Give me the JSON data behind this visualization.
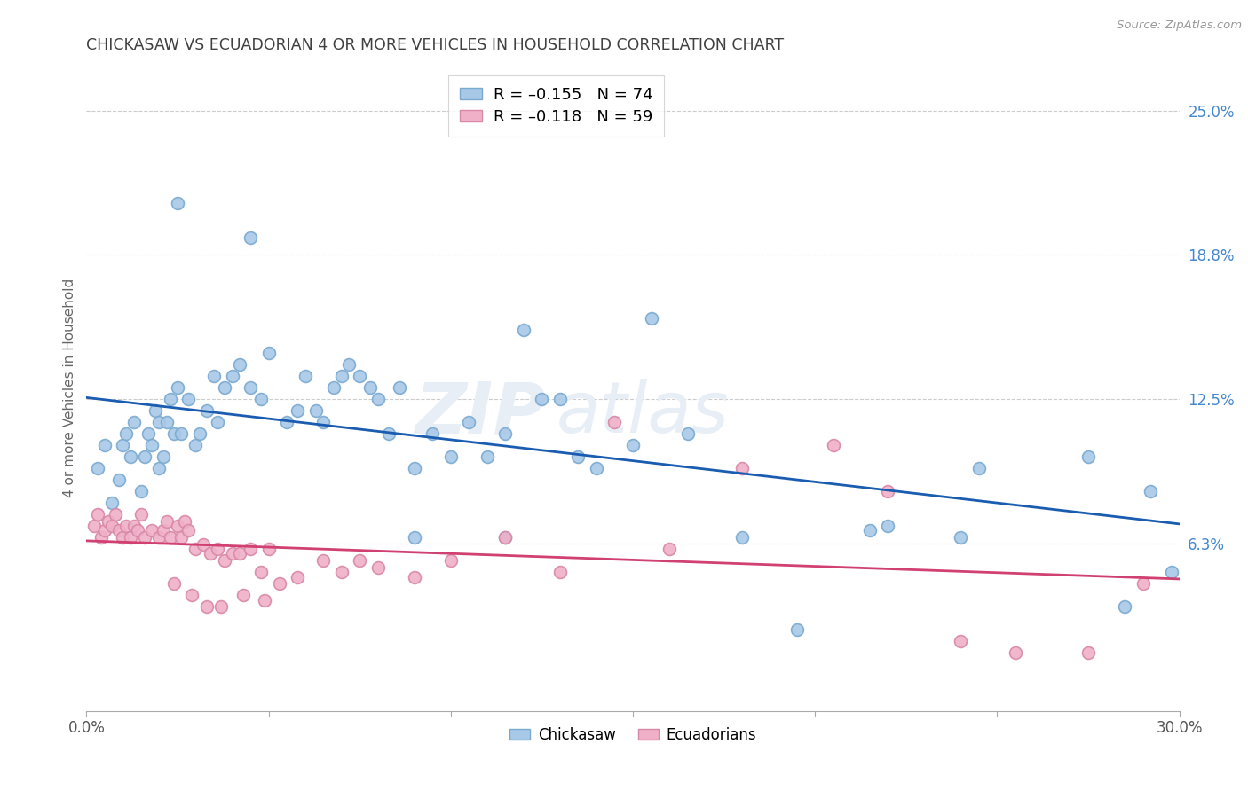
{
  "title": "CHICKASAW VS ECUADORIAN 4 OR MORE VEHICLES IN HOUSEHOLD CORRELATION CHART",
  "source": "Source: ZipAtlas.com",
  "ylabel": "4 or more Vehicles in Household",
  "watermark": "ZIPatlas",
  "xlim": [
    0.0,
    30.0
  ],
  "ylim": [
    -1.0,
    27.0
  ],
  "yticks": [
    6.25,
    12.5,
    18.75,
    25.0
  ],
  "ytick_labels": [
    "6.3%",
    "12.5%",
    "18.8%",
    "25.0%"
  ],
  "chickasaw_color": "#a8c8e8",
  "chickasaw_edge_color": "#7aaad0",
  "chickasaw_line_color": "#1a5cb0",
  "ecuadorian_color": "#f0b0c8",
  "ecuadorian_edge_color": "#d888a8",
  "ecuadorian_line_color": "#d04070",
  "background_color": "#ffffff",
  "grid_color": "#cccccc",
  "title_color": "#404040",
  "right_tick_color": "#4488cc",
  "chickasaw_x": [
    0.3,
    0.5,
    0.7,
    0.9,
    1.0,
    1.1,
    1.2,
    1.3,
    1.5,
    1.6,
    1.7,
    1.8,
    1.9,
    2.0,
    2.0,
    2.1,
    2.2,
    2.3,
    2.4,
    2.5,
    2.6,
    2.8,
    3.0,
    3.1,
    3.3,
    3.5,
    3.6,
    3.8,
    4.0,
    4.2,
    4.5,
    4.8,
    5.0,
    5.5,
    5.8,
    6.0,
    6.3,
    6.5,
    6.8,
    7.0,
    7.2,
    7.5,
    7.8,
    8.0,
    8.3,
    8.6,
    9.0,
    9.5,
    10.0,
    10.5,
    11.0,
    11.5,
    12.0,
    12.5,
    13.5,
    14.0,
    15.0,
    16.5,
    18.0,
    19.5,
    22.0,
    24.5,
    27.5,
    28.5,
    29.2,
    29.8,
    2.5,
    4.5,
    13.0,
    15.5,
    21.5,
    24.0,
    9.0,
    11.5
  ],
  "chickasaw_y": [
    9.5,
    10.5,
    8.0,
    9.0,
    10.5,
    11.0,
    10.0,
    11.5,
    8.5,
    10.0,
    11.0,
    10.5,
    12.0,
    9.5,
    11.5,
    10.0,
    11.5,
    12.5,
    11.0,
    13.0,
    11.0,
    12.5,
    10.5,
    11.0,
    12.0,
    13.5,
    11.5,
    13.0,
    13.5,
    14.0,
    13.0,
    12.5,
    14.5,
    11.5,
    12.0,
    13.5,
    12.0,
    11.5,
    13.0,
    13.5,
    14.0,
    13.5,
    13.0,
    12.5,
    11.0,
    13.0,
    9.5,
    11.0,
    10.0,
    11.5,
    10.0,
    11.0,
    15.5,
    12.5,
    10.0,
    9.5,
    10.5,
    11.0,
    6.5,
    2.5,
    7.0,
    9.5,
    10.0,
    3.5,
    8.5,
    5.0,
    21.0,
    19.5,
    12.5,
    16.0,
    6.8,
    6.5,
    6.5,
    6.5
  ],
  "ecuadorian_x": [
    0.2,
    0.3,
    0.4,
    0.5,
    0.6,
    0.7,
    0.8,
    0.9,
    1.0,
    1.1,
    1.2,
    1.3,
    1.4,
    1.5,
    1.6,
    1.8,
    2.0,
    2.1,
    2.2,
    2.3,
    2.5,
    2.6,
    2.7,
    2.8,
    3.0,
    3.2,
    3.4,
    3.6,
    3.8,
    4.0,
    4.2,
    4.5,
    4.8,
    5.0,
    5.3,
    5.8,
    6.5,
    7.0,
    7.5,
    8.0,
    9.0,
    10.0,
    11.5,
    13.0,
    14.5,
    16.0,
    18.0,
    20.5,
    22.0,
    24.0,
    25.5,
    27.5,
    29.0,
    2.4,
    2.9,
    3.3,
    3.7,
    4.3,
    4.9
  ],
  "ecuadorian_y": [
    7.0,
    7.5,
    6.5,
    6.8,
    7.2,
    7.0,
    7.5,
    6.8,
    6.5,
    7.0,
    6.5,
    7.0,
    6.8,
    7.5,
    6.5,
    6.8,
    6.5,
    6.8,
    7.2,
    6.5,
    7.0,
    6.5,
    7.2,
    6.8,
    6.0,
    6.2,
    5.8,
    6.0,
    5.5,
    5.8,
    5.8,
    6.0,
    5.0,
    6.0,
    4.5,
    4.8,
    5.5,
    5.0,
    5.5,
    5.2,
    4.8,
    5.5,
    6.5,
    5.0,
    11.5,
    6.0,
    9.5,
    10.5,
    8.5,
    2.0,
    1.5,
    1.5,
    4.5,
    4.5,
    4.0,
    3.5,
    3.5,
    4.0,
    3.8
  ]
}
